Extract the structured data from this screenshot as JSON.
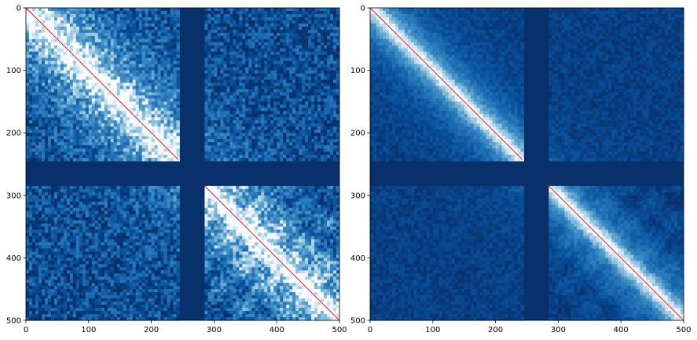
{
  "chart_data": [
    {
      "type": "heatmap",
      "title": "",
      "xlabel": "",
      "ylabel": "",
      "xlim": [
        0,
        500
      ],
      "ylim": [
        500,
        0
      ],
      "x_ticks": [
        0,
        100,
        200,
        300,
        400,
        500
      ],
      "y_ticks": [
        0,
        100,
        200,
        300,
        400,
        500
      ],
      "x_tick_labels": [
        "0",
        "100",
        "200",
        "300",
        "400",
        "500"
      ],
      "y_tick_labels": [
        "0",
        "100",
        "200",
        "300",
        "400",
        "500"
      ],
      "colormap": "Blues_r",
      "diagonal_color": "#ff0000",
      "masked_bins": [
        [
          243,
          283
        ]
      ],
      "texture": "noisy"
    },
    {
      "type": "heatmap",
      "title": "",
      "xlabel": "",
      "ylabel": "",
      "xlim": [
        0,
        500
      ],
      "ylim": [
        500,
        0
      ],
      "x_ticks": [
        0,
        100,
        200,
        300,
        400,
        500
      ],
      "y_ticks": [
        0,
        100,
        200,
        300,
        400,
        500
      ],
      "x_tick_labels": [
        "0",
        "100",
        "200",
        "300",
        "400",
        "500"
      ],
      "y_tick_labels": [
        "0",
        "100",
        "200",
        "300",
        "400",
        "500"
      ],
      "colormap": "Blues_r",
      "diagonal_color": "#ff0000",
      "masked_bins": [
        [
          243,
          283
        ]
      ],
      "texture": "smooth"
    }
  ],
  "colors": {
    "background": "#ffffff",
    "masked": "#08306b",
    "low": "#08306b",
    "mid": "#4292c6",
    "high": "#f7fbff",
    "diagonal": "#ff0000"
  }
}
